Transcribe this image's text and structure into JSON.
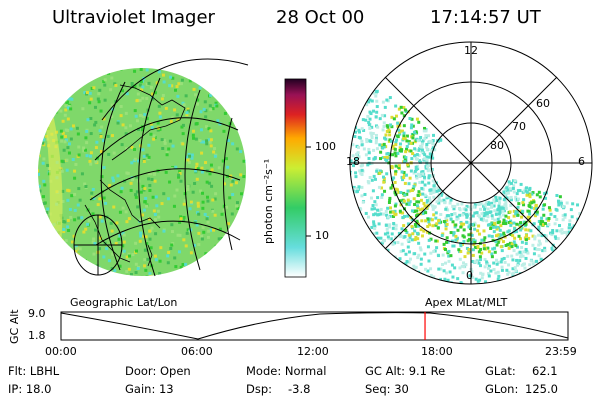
{
  "header": {
    "instrument": "Ultraviolet Imager",
    "date": "28 Oct 00",
    "time": "17:14:57 UT"
  },
  "colorbar": {
    "unit_label": "photon cm⁻²s⁻¹",
    "ticks": [
      "100",
      "10"
    ]
  },
  "polar_plot": {
    "mlt_labels": [
      "12",
      "18",
      "6",
      "0"
    ],
    "lat_labels": [
      "60",
      "70",
      "80"
    ]
  },
  "panel_labels": {
    "left": "Geographic Lat/Lon",
    "right": "Apex MLat/MLT"
  },
  "altitude_plot": {
    "axis_label": "GC Alt",
    "y_ticks": [
      "9.0",
      "1.8"
    ],
    "time_ticks": [
      "00:00",
      "06:00",
      "12:00",
      "18:00",
      "23:59"
    ],
    "current_time_fraction": 0.718,
    "marker_color": "#ff0000"
  },
  "info": {
    "flt": "Flt: LBHL",
    "ip": "IP: 18.0",
    "door": "Door: Open",
    "gain": "Gain: 13",
    "mode": "Mode: Normal",
    "dsp_label": "Dsp:",
    "dsp_value": "-3.8",
    "gc_alt": "GC Alt: 9.1 Re",
    "seq": "Seq: 30",
    "glat_label": "GLat:",
    "glat_value": "62.1",
    "glon_label": "GLon:",
    "glon_value": "125.0"
  },
  "colors": {
    "aurora_green": "#33cc33",
    "aurora_cyan": "#55ddcc",
    "aurora_yellow": "#dddd33",
    "background": "#ffffff"
  }
}
